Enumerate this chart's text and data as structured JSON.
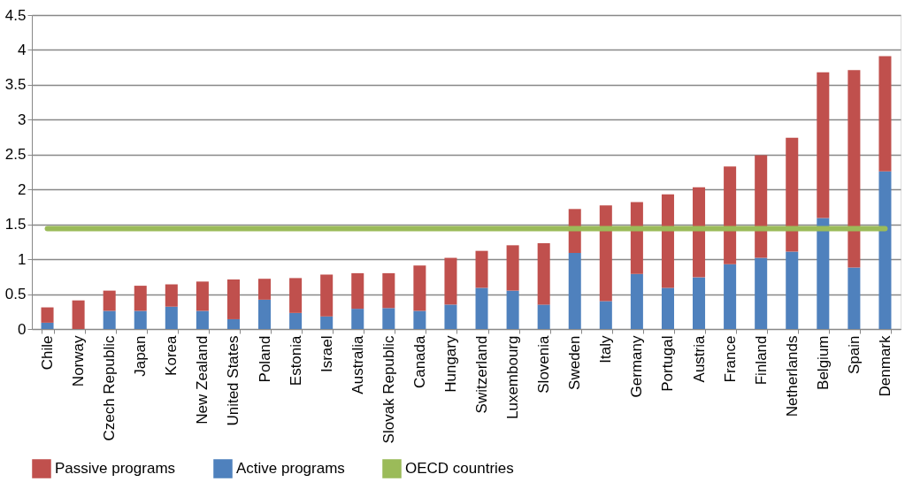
{
  "chart_data": {
    "type": "bar",
    "stacked": true,
    "categories": [
      "Chile",
      "Norway",
      "Czech Republic",
      "Japan",
      "Korea",
      "New Zealand",
      "United States",
      "Poland",
      "Estonia",
      "Israel",
      "Australia",
      "Slovak Republic",
      "Canada",
      "Hungary",
      "Switzerland",
      "Luxembourg",
      "Slovenia",
      "Sweden",
      "Italy",
      "Germany",
      "Portugal",
      "Austria",
      "France",
      "Finland",
      "Netherlands",
      "Belgium",
      "Spain",
      "Denmark"
    ],
    "series": [
      {
        "name": "Active programs",
        "color": "#4f81bd",
        "values": [
          0.09,
          0,
          0.26,
          0.26,
          0.32,
          0.26,
          0.14,
          0.42,
          0.23,
          0.18,
          0.29,
          0.3,
          0.26,
          0.35,
          0.59,
          0.55,
          0.35,
          1.09,
          0.4,
          0.79,
          0.59,
          0.74,
          0.93,
          1.02,
          1.11,
          1.59,
          0.88,
          2.26
        ]
      },
      {
        "name": "Passive programs",
        "color": "#c0504d",
        "values": [
          0.22,
          0.41,
          0.29,
          0.36,
          0.32,
          0.42,
          0.57,
          0.3,
          0.5,
          0.6,
          0.51,
          0.5,
          0.65,
          0.67,
          0.53,
          0.65,
          0.88,
          0.63,
          1.37,
          1.03,
          1.34,
          1.29,
          1.4,
          1.47,
          1.63,
          2.09,
          2.83,
          1.65
        ]
      },
      {
        "name": "OECD countries",
        "type": "line",
        "color": "#9bbb59",
        "values": [
          1.44,
          1.44,
          1.44,
          1.44,
          1.44,
          1.44,
          1.44,
          1.44,
          1.44,
          1.44,
          1.44,
          1.44,
          1.44,
          1.44,
          1.44,
          1.44,
          1.44,
          1.44,
          1.44,
          1.44,
          1.44,
          1.44,
          1.44,
          1.44,
          1.44,
          1.44,
          1.44,
          1.44
        ]
      }
    ],
    "ylim": [
      0,
      4.5
    ],
    "yticks": [
      0,
      0.5,
      1,
      1.5,
      2,
      2.5,
      3,
      3.5,
      4,
      4.5
    ],
    "grid": "y",
    "legend": "bottom"
  }
}
